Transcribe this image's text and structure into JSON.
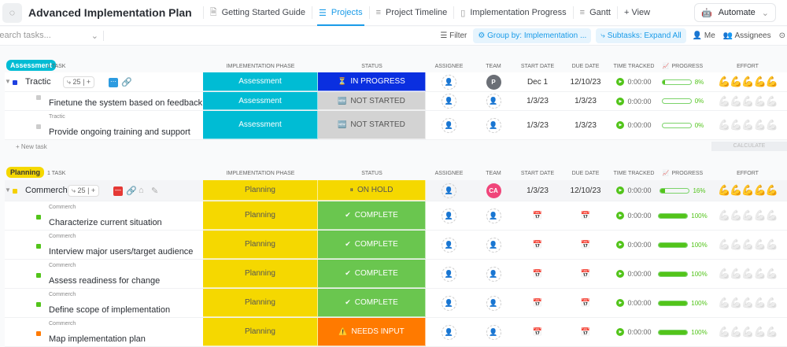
{
  "header": {
    "title": "Advanced Implementation Plan",
    "tabs": [
      {
        "label": "Getting Started Guide",
        "icon": "doc-icon",
        "active": false
      },
      {
        "label": "Projects",
        "icon": "list-icon",
        "active": true
      },
      {
        "label": "Project Timeline",
        "icon": "timeline-icon",
        "active": false
      },
      {
        "label": "Implementation Progress",
        "icon": "board-icon",
        "active": false
      },
      {
        "label": "Gantt",
        "icon": "gantt-icon",
        "active": false
      },
      {
        "label": "+ View",
        "icon": "",
        "active": false
      }
    ],
    "automate": "Automate"
  },
  "toolbar": {
    "search_placeholder": "Search tasks...",
    "filter": "Filter",
    "group_by": "Group by: Implementation ...",
    "subtasks": "Subtasks: Expand All",
    "me": "Me",
    "assignees": "Assignees"
  },
  "columns": {
    "phase": "Implementation Phase",
    "status": "Status",
    "assignee": "Assignee",
    "team": "Team",
    "start": "Start Date",
    "due": "Due Date",
    "time": "Time Tracked",
    "progress": "Progress",
    "effort": "Effort"
  },
  "groups": [
    {
      "label": "Assessment",
      "count": "1 TASK",
      "color": "#00bcd4",
      "new_task": "+ New task",
      "calculate": "CALCULATE"
    },
    {
      "label": "Planning",
      "count": "1 TASK",
      "color": "#f5d800"
    }
  ],
  "rows": [
    {
      "group": 0,
      "parent_task": true,
      "name": "Tractic",
      "subtasks": "25",
      "square": "#1e40e0",
      "phase": "Assessment",
      "status": "IN PROGRESS",
      "status_icon": "⏳",
      "status_color": "#0a2fe0",
      "team": "P",
      "team_color": "#6b6f76",
      "start": "Dec 1",
      "due": "12/10/23",
      "time": "0:00:00",
      "progress": 8,
      "effort": 5
    },
    {
      "group": 0,
      "parent": "",
      "name": "Finetune the system based on feedback",
      "square": "#ccc",
      "phase": "Assessment",
      "status": "NOT STARTED",
      "status_icon": "🆕",
      "status_color": "#d3d3d3",
      "start": "1/3/23",
      "due": "1/3/23",
      "time": "0:00:00",
      "progress": 0,
      "effort": 0
    },
    {
      "group": 0,
      "parent": "Tractic",
      "name": "Provide ongoing training and support",
      "square": "#ccc",
      "phase": "Assessment",
      "status": "NOT STARTED",
      "status_icon": "🆕",
      "status_color": "#d3d3d3",
      "start": "1/3/23",
      "due": "1/3/23",
      "time": "0:00:00",
      "progress": 0,
      "effort": 0
    },
    {
      "group": 1,
      "parent_task": true,
      "name": "Commerch",
      "subtasks": "25",
      "square": "#f5d000",
      "phase": "Planning",
      "status": "ON HOLD",
      "status_icon": "⏸",
      "status_color": "#f5d800",
      "team": "CA",
      "team_color": "#f0457a",
      "start": "1/3/23",
      "due": "12/10/23",
      "time": "0:00:00",
      "progress": 16,
      "effort": 5
    },
    {
      "group": 1,
      "parent": "Commerch",
      "name": "Characterize current situation",
      "square": "#52c41a",
      "phase": "Planning",
      "status": "COMPLETE",
      "status_icon": "✔",
      "status_color": "#6ac64f",
      "time": "0:00:00",
      "progress": 100,
      "effort": 0
    },
    {
      "group": 1,
      "parent": "Commerch",
      "name": "Interview major users/target audience",
      "square": "#52c41a",
      "phase": "Planning",
      "status": "COMPLETE",
      "status_icon": "✔",
      "status_color": "#6ac64f",
      "time": "0:00:00",
      "progress": 100,
      "effort": 0
    },
    {
      "group": 1,
      "parent": "Commerch",
      "name": "Assess readiness for change",
      "square": "#52c41a",
      "phase": "Planning",
      "status": "COMPLETE",
      "status_icon": "✔",
      "status_color": "#6ac64f",
      "time": "0:00:00",
      "progress": 100,
      "effort": 0
    },
    {
      "group": 1,
      "parent": "Commerch",
      "name": "Define scope of implementation",
      "square": "#52c41a",
      "phase": "Planning",
      "status": "COMPLETE",
      "status_icon": "✔",
      "status_color": "#6ac64f",
      "time": "0:00:00",
      "progress": 100,
      "effort": 0
    },
    {
      "group": 1,
      "parent": "Commerch",
      "name": "Map implementation plan",
      "square": "#ff7a00",
      "phase": "Planning",
      "status": "NEEDS INPUT",
      "status_icon": "⚠️",
      "status_color": "#ff7a00",
      "time": "0:00:00",
      "progress": 100,
      "effort": 0
    }
  ]
}
